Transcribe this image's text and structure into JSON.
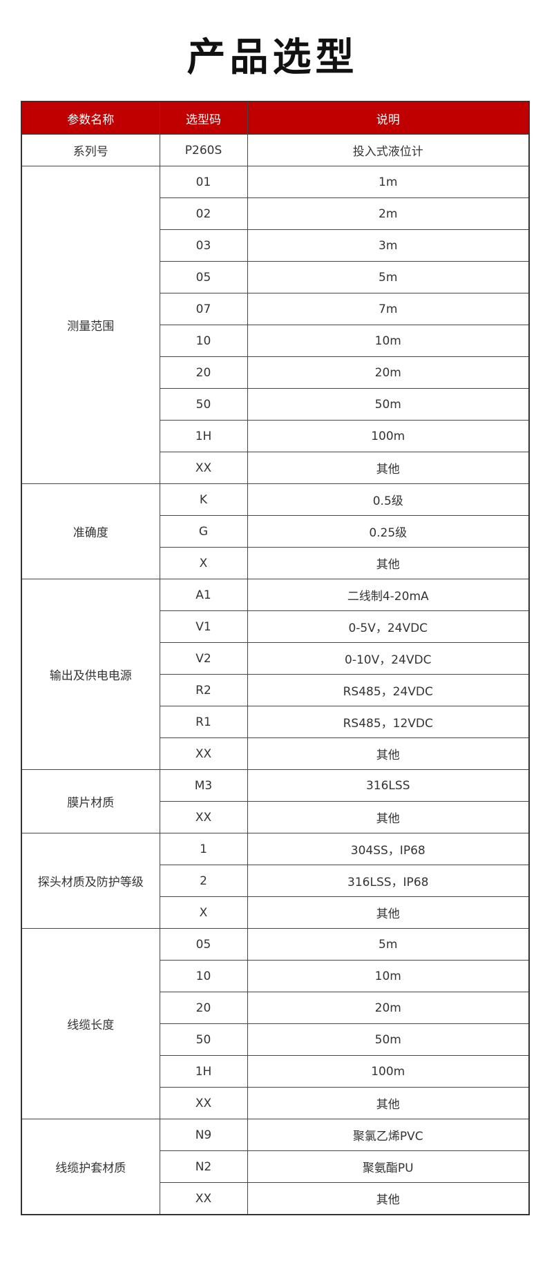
{
  "title": "产品选型",
  "colors": {
    "header_bg": "#c00000",
    "header_text": "#ffffff"
  },
  "table": {
    "headers": [
      "参数名称",
      "选型码",
      "说明"
    ],
    "groups": [
      {
        "name": "系列号",
        "rows": [
          [
            "P260S",
            "投入式液位计"
          ]
        ]
      },
      {
        "name": "测量范围",
        "rows": [
          [
            "01",
            "1m"
          ],
          [
            "02",
            "2m"
          ],
          [
            "03",
            "3m"
          ],
          [
            "05",
            "5m"
          ],
          [
            "07",
            "7m"
          ],
          [
            "10",
            "10m"
          ],
          [
            "20",
            "20m"
          ],
          [
            "50",
            "50m"
          ],
          [
            "1H",
            "100m"
          ],
          [
            "XX",
            "其他"
          ]
        ]
      },
      {
        "name": "准确度",
        "rows": [
          [
            "K",
            "0.5级"
          ],
          [
            "G",
            "0.25级"
          ],
          [
            "X",
            "其他"
          ]
        ]
      },
      {
        "name": "输出及供电电源",
        "rows": [
          [
            "A1",
            "二线制4-20mA"
          ],
          [
            "V1",
            "0-5V，24VDC"
          ],
          [
            "V2",
            "0-10V，24VDC"
          ],
          [
            "R2",
            "RS485，24VDC"
          ],
          [
            "R1",
            "RS485，12VDC"
          ],
          [
            "XX",
            "其他"
          ]
        ]
      },
      {
        "name": "膜片材质",
        "rows": [
          [
            "M3",
            "316LSS"
          ],
          [
            "XX",
            "其他"
          ]
        ]
      },
      {
        "name": "探头材质及防护等级",
        "rows": [
          [
            "1",
            "304SS，IP68"
          ],
          [
            "2",
            "316LSS，IP68"
          ],
          [
            "X",
            "其他"
          ]
        ]
      },
      {
        "name": "线缆长度",
        "rows": [
          [
            "05",
            "5m"
          ],
          [
            "10",
            "10m"
          ],
          [
            "20",
            "20m"
          ],
          [
            "50",
            "50m"
          ],
          [
            "1H",
            "100m"
          ],
          [
            "XX",
            "其他"
          ]
        ]
      },
      {
        "name": "线缆护套材质",
        "rows": [
          [
            "N9",
            "聚氯乙烯PVC"
          ],
          [
            "N2",
            "聚氨酯PU"
          ],
          [
            "XX",
            "其他"
          ]
        ]
      }
    ]
  }
}
